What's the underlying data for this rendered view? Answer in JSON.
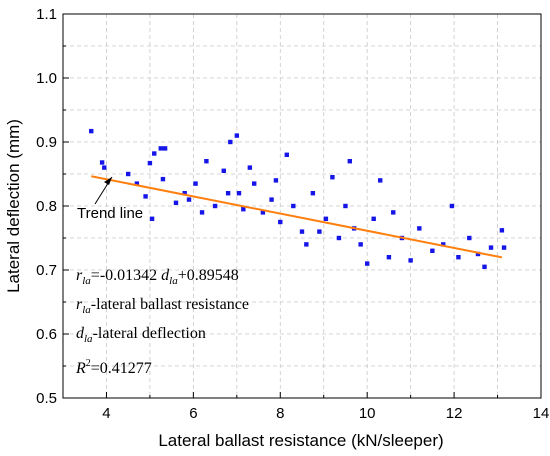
{
  "chart_data": {
    "type": "scatter",
    "title": "",
    "xlabel": "Lateral ballast resistance (kN/sleeper)",
    "ylabel": "Lateral deflection (mm)",
    "xlim": [
      3,
      14
    ],
    "ylim": [
      0.5,
      1.1
    ],
    "x_ticks": [
      "4",
      "6",
      "8",
      "10",
      "12",
      "14"
    ],
    "y_ticks": [
      "0.5",
      "0.6",
      "0.7",
      "0.8",
      "0.9",
      "1.0",
      "1.1"
    ],
    "grid": true,
    "marker_color": "#1515e8",
    "trend_color": "#ff7f0e",
    "series": [
      {
        "points": [
          [
            3.65,
            0.917
          ],
          [
            3.9,
            0.868
          ],
          [
            3.95,
            0.86
          ],
          [
            4.5,
            0.85
          ],
          [
            4.7,
            0.835
          ],
          [
            4.9,
            0.815
          ],
          [
            5.0,
            0.867
          ],
          [
            5.05,
            0.78
          ],
          [
            5.1,
            0.882
          ],
          [
            5.25,
            0.89
          ],
          [
            5.35,
            0.89
          ],
          [
            5.3,
            0.842
          ],
          [
            5.6,
            0.805
          ],
          [
            5.8,
            0.82
          ],
          [
            5.9,
            0.81
          ],
          [
            6.05,
            0.835
          ],
          [
            6.2,
            0.79
          ],
          [
            6.3,
            0.87
          ],
          [
            6.5,
            0.8
          ],
          [
            6.7,
            0.855
          ],
          [
            6.8,
            0.82
          ],
          [
            6.85,
            0.9
          ],
          [
            7.0,
            0.91
          ],
          [
            7.05,
            0.82
          ],
          [
            7.15,
            0.795
          ],
          [
            7.3,
            0.86
          ],
          [
            7.4,
            0.835
          ],
          [
            7.6,
            0.79
          ],
          [
            7.8,
            0.81
          ],
          [
            7.9,
            0.84
          ],
          [
            8.0,
            0.775
          ],
          [
            8.15,
            0.88
          ],
          [
            8.3,
            0.8
          ],
          [
            8.5,
            0.76
          ],
          [
            8.6,
            0.74
          ],
          [
            8.75,
            0.82
          ],
          [
            8.9,
            0.76
          ],
          [
            9.05,
            0.78
          ],
          [
            9.2,
            0.845
          ],
          [
            9.35,
            0.75
          ],
          [
            9.5,
            0.8
          ],
          [
            9.6,
            0.87
          ],
          [
            9.7,
            0.765
          ],
          [
            9.85,
            0.74
          ],
          [
            10.0,
            0.71
          ],
          [
            10.15,
            0.78
          ],
          [
            10.3,
            0.84
          ],
          [
            10.5,
            0.72
          ],
          [
            10.6,
            0.79
          ],
          [
            10.8,
            0.75
          ],
          [
            11.0,
            0.715
          ],
          [
            11.2,
            0.765
          ],
          [
            11.5,
            0.73
          ],
          [
            11.75,
            0.74
          ],
          [
            11.95,
            0.8
          ],
          [
            12.1,
            0.72
          ],
          [
            12.35,
            0.75
          ],
          [
            12.55,
            0.725
          ],
          [
            12.7,
            0.705
          ],
          [
            12.85,
            0.735
          ],
          [
            13.1,
            0.762
          ],
          [
            13.15,
            0.735
          ]
        ]
      }
    ],
    "trend_line": {
      "x": [
        3.65,
        13.1
      ],
      "y": [
        0.8465,
        0.7197
      ]
    },
    "annotations": {
      "trend_label": "Trend line",
      "eq_r": "r",
      "eq_r_sub": "la",
      "eq_coef": "=-0.01342 ",
      "eq_d": "d",
      "eq_d_sub": "la",
      "eq_const": "+0.89548",
      "def_r": "r",
      "def_r_sub": "la",
      "def_r_text": "-lateral ballast resistance",
      "def_d": "d",
      "def_d_sub": "la",
      "def_d_text": "-lateral deflection",
      "r2_r": "R",
      "r2_sup": "2",
      "r2_text": "=0.41277"
    }
  }
}
